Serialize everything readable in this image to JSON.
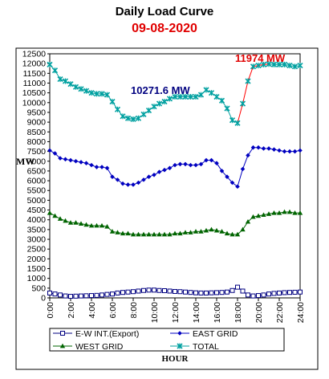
{
  "title": "Daily Load Curve",
  "subtitle": "09-08-2020",
  "chart_data": {
    "type": "line",
    "xlabel": "HOUR",
    "ylabel": "MW",
    "ylim": [
      0,
      12500
    ],
    "xlim": [
      0,
      24
    ],
    "yticks": [
      0,
      500,
      1000,
      1500,
      2000,
      2500,
      3000,
      3500,
      4000,
      4500,
      5000,
      5500,
      6000,
      6500,
      7000,
      7500,
      8000,
      8500,
      9000,
      9500,
      10000,
      10500,
      11000,
      11500,
      12000,
      12500
    ],
    "xticks": [
      "0:00",
      "2:00",
      "4:00",
      "6:00",
      "8:00",
      "10:00",
      "12:00",
      "14:00",
      "16:00",
      "18:00",
      "20:00",
      "22:00",
      "24:00"
    ],
    "x": [
      0,
      0.5,
      1,
      1.5,
      2,
      2.5,
      3,
      3.5,
      4,
      4.5,
      5,
      5.5,
      6,
      6.5,
      7,
      7.5,
      8,
      8.5,
      9,
      9.5,
      10,
      10.5,
      11,
      11.5,
      12,
      12.5,
      13,
      13.5,
      14,
      14.5,
      15,
      15.5,
      16,
      16.5,
      17,
      17.5,
      18,
      18.5,
      19,
      19.5,
      20,
      20.5,
      21,
      21.5,
      22,
      22.5,
      23,
      23.5,
      24
    ],
    "series": [
      {
        "name": "E-W INT.(Export)",
        "color": "#000080",
        "marker": "square",
        "values": [
          250,
          200,
          150,
          100,
          80,
          90,
          100,
          110,
          120,
          130,
          150,
          180,
          200,
          250,
          280,
          300,
          320,
          350,
          380,
          400,
          400,
          380,
          370,
          350,
          330,
          320,
          300,
          280,
          260,
          250,
          250,
          260,
          270,
          280,
          300,
          380,
          550,
          350,
          150,
          100,
          120,
          150,
          200,
          230,
          250,
          270,
          280,
          290,
          300
        ]
      },
      {
        "name": "EAST GRID",
        "color": "#0000c0",
        "marker": "diamond",
        "values": [
          7550,
          7400,
          7150,
          7100,
          7050,
          7000,
          6950,
          6900,
          6800,
          6700,
          6700,
          6650,
          6200,
          6050,
          5850,
          5800,
          5800,
          5900,
          6050,
          6200,
          6300,
          6450,
          6550,
          6650,
          6800,
          6850,
          6850,
          6800,
          6800,
          6850,
          7050,
          7050,
          6900,
          6500,
          6200,
          5900,
          5700,
          6600,
          7300,
          7700,
          7700,
          7650,
          7650,
          7600,
          7550,
          7500,
          7500,
          7500,
          7550
        ]
      },
      {
        "name": "WEST GRID",
        "color": "#006400",
        "marker": "triangle",
        "values": [
          4350,
          4200,
          4050,
          3950,
          3850,
          3850,
          3800,
          3750,
          3700,
          3700,
          3700,
          3650,
          3400,
          3350,
          3300,
          3300,
          3250,
          3250,
          3250,
          3250,
          3250,
          3250,
          3250,
          3250,
          3300,
          3300,
          3350,
          3350,
          3400,
          3400,
          3450,
          3500,
          3450,
          3400,
          3300,
          3250,
          3250,
          3500,
          3900,
          4150,
          4200,
          4250,
          4300,
          4350,
          4350,
          4400,
          4400,
          4350,
          4350
        ]
      },
      {
        "name": "TOTAL",
        "color": "#00a0a0",
        "marker": "star",
        "values": [
          11950,
          11650,
          11200,
          11100,
          10950,
          10800,
          10700,
          10600,
          10500,
          10450,
          10450,
          10400,
          10050,
          9650,
          9300,
          9200,
          9150,
          9200,
          9400,
          9600,
          9800,
          9950,
          10050,
          10200,
          10300,
          10300,
          10300,
          10300,
          10300,
          10400,
          10650,
          10500,
          10300,
          10100,
          9700,
          9100,
          8950,
          9950,
          11100,
          11850,
          11900,
          11950,
          11974,
          11950,
          11950,
          11950,
          11900,
          11850,
          11900
        ]
      }
    ],
    "annotations": [
      {
        "text": "11974 MW",
        "x": 21,
        "y": 11974,
        "color": "#e00000"
      },
      {
        "text": "10271.6 MW",
        "x": 7.8,
        "y": 10271.6,
        "color": "#000080"
      }
    ],
    "legend": {
      "placement": "bottom"
    },
    "highlight_segment": {
      "series": "TOTAL",
      "from": 18,
      "to": 21,
      "color": "#ff0000"
    }
  }
}
